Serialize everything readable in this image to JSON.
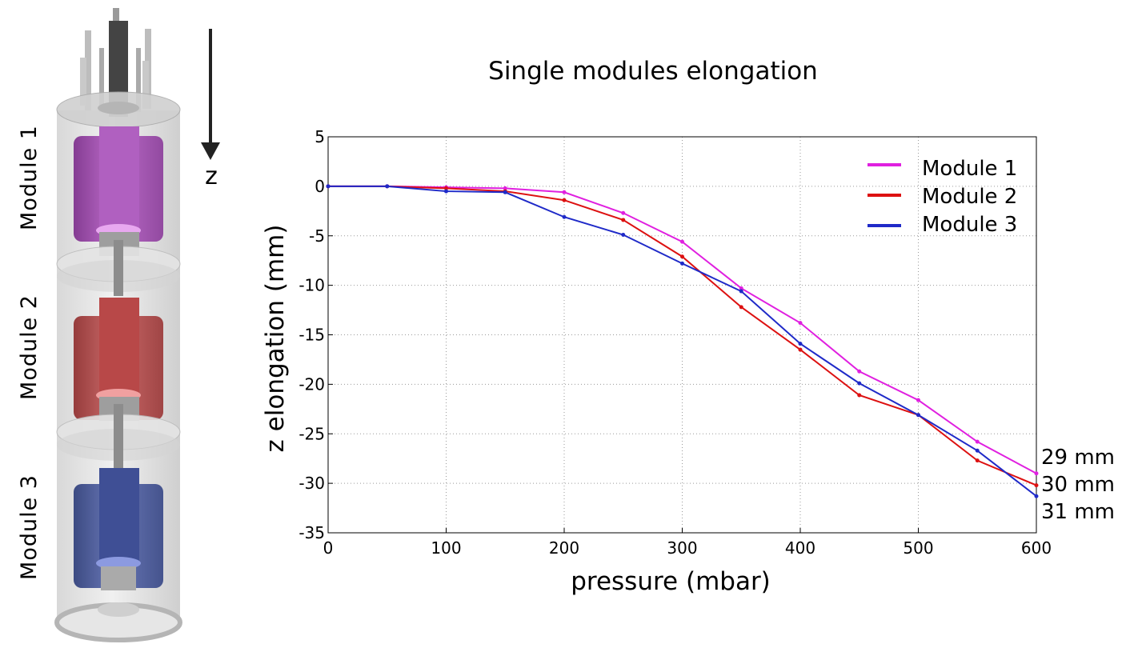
{
  "illustration": {
    "module_labels": [
      "Module 1",
      "Module 2",
      "Module 3"
    ],
    "axis_arrow_label": "z"
  },
  "chart_data": {
    "type": "line",
    "title": "Single modules elongation",
    "xlabel": "pressure (mbar)",
    "ylabel": "z elongation (mm)",
    "xlim": [
      0,
      600
    ],
    "ylim": [
      -35,
      5
    ],
    "x_ticks": [
      0,
      100,
      200,
      300,
      400,
      500,
      600
    ],
    "y_ticks": [
      5,
      0,
      -5,
      -10,
      -15,
      -20,
      -25,
      -30,
      -35
    ],
    "grid": true,
    "legend_position": "top-right",
    "x": [
      0,
      50,
      100,
      150,
      200,
      250,
      300,
      350,
      400,
      450,
      500,
      550,
      600
    ],
    "series": [
      {
        "name": "Module 1",
        "color": "#e020e0",
        "values": [
          0,
          0,
          -0.1,
          -0.2,
          -0.6,
          -2.7,
          -5.6,
          -10.3,
          -13.8,
          -18.7,
          -21.6,
          -25.8,
          -29.0
        ]
      },
      {
        "name": "Module 2",
        "color": "#dd1111",
        "values": [
          0,
          0,
          -0.2,
          -0.5,
          -1.4,
          -3.4,
          -7.1,
          -12.2,
          -16.5,
          -21.1,
          -23.1,
          -27.7,
          -30.2
        ]
      },
      {
        "name": "Module 3",
        "color": "#1f2ac8",
        "values": [
          0,
          0,
          -0.5,
          -0.6,
          -3.1,
          -4.9,
          -7.8,
          -10.6,
          -15.9,
          -19.9,
          -23.1,
          -26.7,
          -31.3
        ]
      }
    ],
    "end_annotations": [
      "29 mm",
      "30 mm",
      "31 mm"
    ]
  }
}
